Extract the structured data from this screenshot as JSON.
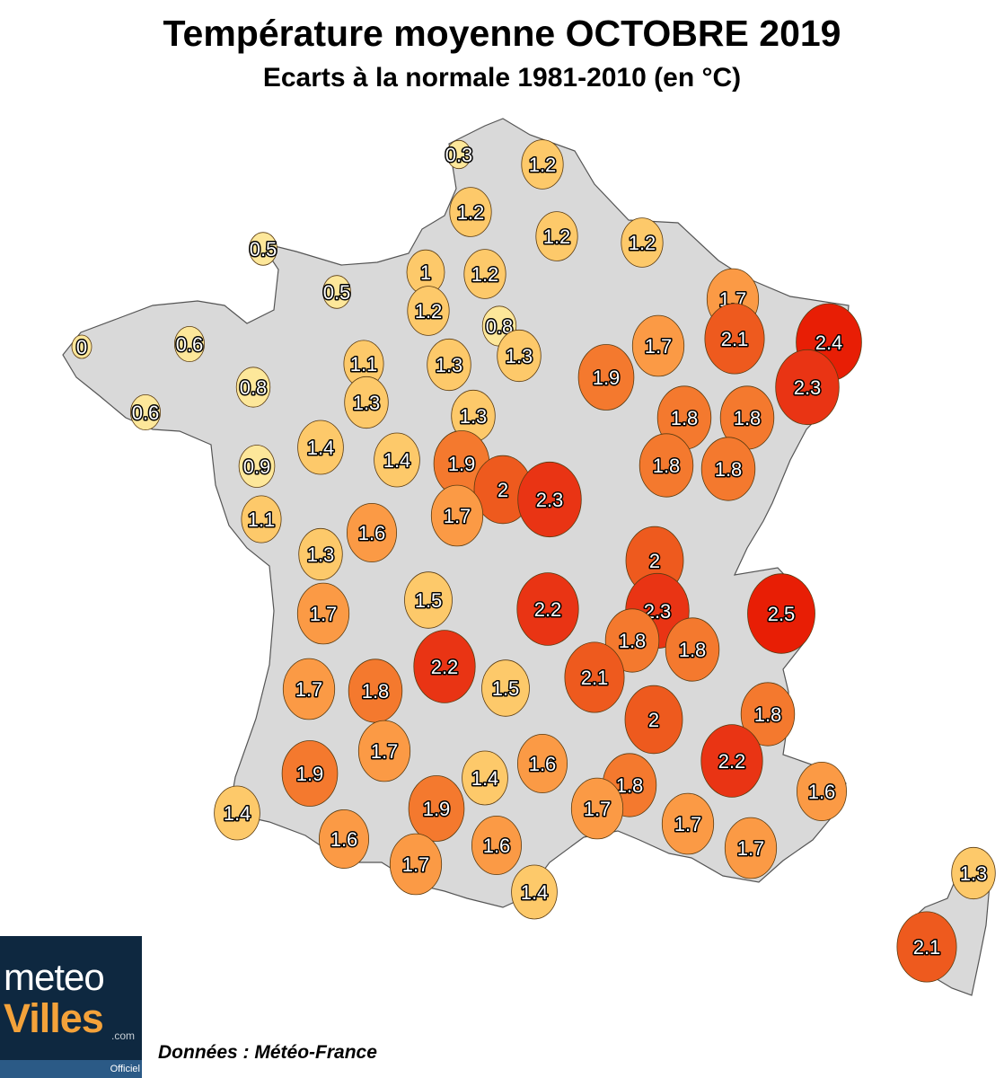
{
  "title": "Température moyenne OCTOBRE 2019",
  "subtitle": "Ecarts à la normale 1981-2010 (en °C)",
  "source": "Données : Météo-France",
  "logo": {
    "line1": "meteo",
    "line2": "Villes",
    "suffix": ".com",
    "tag": "Officiel"
  },
  "colors": {
    "land": "#d9d9d9",
    "scale": [
      "#fde79a",
      "#fdc96a",
      "#fb9a45",
      "#f4792e",
      "#ee5a1e",
      "#e93414",
      "#e81e05"
    ]
  },
  "markers": [
    {
      "value": "0.3"
    },
    {
      "value": "1.2"
    },
    {
      "value": "1.2"
    },
    {
      "value": "1.2"
    },
    {
      "value": "1.2"
    },
    {
      "value": "0.5"
    },
    {
      "value": "0.5"
    },
    {
      "value": "1"
    },
    {
      "value": "1.2"
    },
    {
      "value": "1.2"
    },
    {
      "value": "0.8"
    },
    {
      "value": "1.3"
    },
    {
      "value": "1.7"
    },
    {
      "value": "2.1"
    },
    {
      "value": "2.4"
    },
    {
      "value": "0"
    },
    {
      "value": "0.6"
    },
    {
      "value": "1.1"
    },
    {
      "value": "1.3"
    },
    {
      "value": "1.9"
    },
    {
      "value": "1.7"
    },
    {
      "value": "2.3"
    },
    {
      "value": "0.8"
    },
    {
      "value": "1.3"
    },
    {
      "value": "1.3"
    },
    {
      "value": "1.8"
    },
    {
      "value": "1.8"
    },
    {
      "value": "0.6"
    },
    {
      "value": "1.4"
    },
    {
      "value": "1.4"
    },
    {
      "value": "1.9"
    },
    {
      "value": "0.9"
    },
    {
      "value": "2"
    },
    {
      "value": "2.3"
    },
    {
      "value": "1.8"
    },
    {
      "value": "1.8"
    },
    {
      "value": "1.1"
    },
    {
      "value": "1.7"
    },
    {
      "value": "1.6"
    },
    {
      "value": "1.3"
    },
    {
      "value": "2"
    },
    {
      "value": "1.5"
    },
    {
      "value": "2.2"
    },
    {
      "value": "2.3"
    },
    {
      "value": "2.5"
    },
    {
      "value": "1.7"
    },
    {
      "value": "1.8"
    },
    {
      "value": "1.8"
    },
    {
      "value": "2.2"
    },
    {
      "value": "1.5"
    },
    {
      "value": "2.1"
    },
    {
      "value": "1.7"
    },
    {
      "value": "1.8"
    },
    {
      "value": "2"
    },
    {
      "value": "1.8"
    },
    {
      "value": "1.7"
    },
    {
      "value": "1.9"
    },
    {
      "value": "1.6"
    },
    {
      "value": "1.4"
    },
    {
      "value": "1.8"
    },
    {
      "value": "2.2"
    },
    {
      "value": "1.4"
    },
    {
      "value": "1.9"
    },
    {
      "value": "1.7"
    },
    {
      "value": "1.6"
    },
    {
      "value": "1.6"
    },
    {
      "value": "1.6"
    },
    {
      "value": "1.7"
    },
    {
      "value": "1.7"
    },
    {
      "value": "1.7"
    },
    {
      "value": "1.4"
    },
    {
      "value": "1.3"
    },
    {
      "value": "2.1"
    }
  ]
}
